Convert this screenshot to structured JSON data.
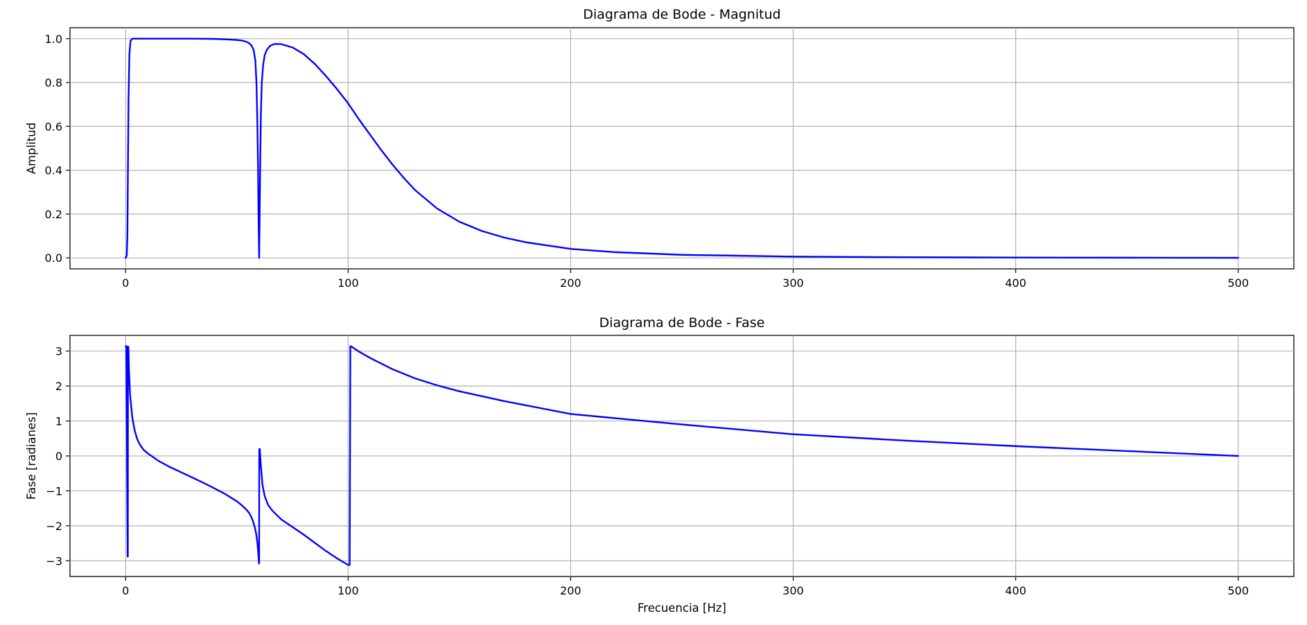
{
  "chart_data": [
    {
      "type": "line",
      "title": "Diagrama de Bode - Magnitud",
      "xlabel": "",
      "ylabel": "Amplitud",
      "xlim": [
        -25,
        525
      ],
      "ylim": [
        -0.05,
        1.05
      ],
      "xticks": [
        0,
        100,
        200,
        300,
        400,
        500
      ],
      "xtick_labels": [
        "0",
        "100",
        "200",
        "300",
        "400",
        "500"
      ],
      "yticks": [
        0.0,
        0.2,
        0.4,
        0.6,
        0.8,
        1.0
      ],
      "ytick_labels": [
        "0.0",
        "0.2",
        "0.4",
        "0.6",
        "0.8",
        "1.0"
      ],
      "grid": true,
      "color": "#0000ff",
      "series": [
        {
          "x": [
            0,
            0.5,
            0.8,
            1.0,
            1.3,
            1.7,
            2.2,
            3,
            5,
            10,
            20,
            30,
            40,
            45,
            50,
            53,
            55,
            56.5,
            57.5,
            58.3,
            58.8,
            59.2,
            59.5,
            59.7,
            59.85,
            60,
            60.15,
            60.3,
            60.5,
            60.8,
            61.2,
            61.8,
            62.5,
            63.5,
            65,
            67,
            70,
            75,
            80,
            85,
            90,
            95,
            100,
            105,
            110,
            115,
            120,
            125,
            130,
            140,
            150,
            160,
            170,
            180,
            200,
            220,
            250,
            300,
            350,
            400,
            450,
            500
          ],
          "y": [
            0.0,
            0.01,
            0.1,
            0.35,
            0.72,
            0.93,
            0.99,
            1.0,
            1.0,
            1.0,
            1.0,
            1.0,
            0.999,
            0.997,
            0.994,
            0.99,
            0.983,
            0.97,
            0.95,
            0.9,
            0.8,
            0.62,
            0.42,
            0.22,
            0.1,
            0.0,
            0.12,
            0.26,
            0.45,
            0.66,
            0.8,
            0.88,
            0.925,
            0.95,
            0.968,
            0.976,
            0.975,
            0.96,
            0.93,
            0.885,
            0.83,
            0.77,
            0.705,
            0.63,
            0.56,
            0.49,
            0.425,
            0.365,
            0.31,
            0.225,
            0.165,
            0.123,
            0.093,
            0.071,
            0.041,
            0.026,
            0.014,
            0.006,
            0.003,
            0.0015,
            0.001,
            0.0005
          ]
        }
      ]
    },
    {
      "type": "line",
      "title": "Diagrama de Bode - Fase",
      "xlabel": "Frecuencia [Hz]",
      "ylabel": "Fase [radianes]",
      "xlim": [
        -25,
        525
      ],
      "ylim": [
        -3.45,
        3.45
      ],
      "xticks": [
        0,
        100,
        200,
        300,
        400,
        500
      ],
      "xtick_labels": [
        "0",
        "100",
        "200",
        "300",
        "400",
        "500"
      ],
      "yticks": [
        -3,
        -2,
        -1,
        0,
        1,
        2,
        3
      ],
      "ytick_labels": [
        "−3",
        "−2",
        "−1",
        "0",
        "1",
        "2",
        "3"
      ],
      "grid": true,
      "color": "#0000ff",
      "series": [
        {
          "x": [
            0,
            0.3,
            0.6,
            0.9,
            1.0,
            1.05,
            1.1,
            1.25,
            1.5,
            2,
            3,
            4,
            5,
            6,
            7,
            8,
            10,
            15,
            20,
            25,
            30,
            35,
            40,
            45,
            50,
            52,
            54,
            55.5,
            56.5,
            57.3,
            58,
            58.6,
            59.1,
            59.5,
            59.8,
            59.95,
            60,
            60.05,
            60.3,
            60.8,
            61.5,
            62.5,
            64,
            66,
            70,
            80,
            90,
            95,
            100,
            100.7,
            101,
            101.5,
            105,
            110,
            120,
            130,
            140,
            150,
            170,
            200,
            250,
            300,
            350,
            400,
            450,
            500
          ],
          "y": [
            3.14,
            3.14,
            0.3,
            -2.88,
            -2.88,
            3.13,
            3.13,
            3.12,
            2.5,
            1.75,
            1.1,
            0.75,
            0.52,
            0.37,
            0.27,
            0.18,
            0.07,
            -0.15,
            -0.32,
            -0.47,
            -0.62,
            -0.77,
            -0.93,
            -1.1,
            -1.3,
            -1.4,
            -1.52,
            -1.63,
            -1.75,
            -1.88,
            -2.03,
            -2.2,
            -2.42,
            -2.68,
            -2.95,
            -3.08,
            -3.08,
            0.2,
            0.2,
            -0.3,
            -0.82,
            -1.15,
            -1.4,
            -1.57,
            -1.82,
            -2.25,
            -2.72,
            -2.93,
            -3.12,
            -3.12,
            3.14,
            3.13,
            2.98,
            2.8,
            2.48,
            2.22,
            2.02,
            1.85,
            1.57,
            1.2,
            0.9,
            0.62,
            0.44,
            0.28,
            0.14,
            0.0
          ]
        }
      ]
    }
  ]
}
